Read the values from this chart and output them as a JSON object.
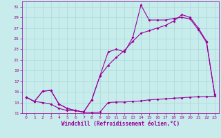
{
  "xlabel": "Windchill (Refroidissement éolien,°C)",
  "xlim": [
    -0.5,
    23.5
  ],
  "ylim": [
    11,
    32
  ],
  "xticks": [
    0,
    1,
    2,
    3,
    4,
    5,
    6,
    7,
    8,
    9,
    10,
    11,
    12,
    13,
    14,
    15,
    16,
    17,
    18,
    19,
    20,
    21,
    22,
    23
  ],
  "yticks": [
    11,
    13,
    15,
    17,
    19,
    21,
    23,
    25,
    27,
    29,
    31
  ],
  "background_color": "#c8ecec",
  "grid_color": "#a8d8d8",
  "line_color": "#990099",
  "line1_y": [
    14.0,
    13.2,
    13.0,
    12.7,
    11.9,
    11.5,
    11.5,
    11.2,
    11.1,
    11.2,
    13.0,
    13.1,
    13.1,
    13.2,
    13.3,
    13.5,
    13.6,
    13.7,
    13.8,
    13.9,
    14.0,
    14.1,
    14.1,
    14.2
  ],
  "line2_y": [
    14.0,
    13.2,
    15.1,
    15.3,
    12.7,
    11.9,
    11.5,
    11.2,
    13.5,
    18.0,
    22.5,
    23.0,
    22.5,
    25.2,
    31.3,
    28.5,
    28.5,
    28.5,
    28.8,
    29.0,
    28.7,
    26.7,
    24.3,
    14.5
  ],
  "line3_y": [
    14.0,
    13.2,
    15.1,
    15.3,
    12.7,
    11.9,
    11.5,
    11.2,
    13.5,
    18.0,
    20.0,
    21.5,
    22.8,
    24.5,
    26.0,
    26.5,
    27.0,
    27.5,
    28.3,
    29.5,
    29.0,
    27.0,
    24.5,
    14.5
  ],
  "tick_fontsize": 4.5,
  "xlabel_fontsize": 5.5
}
